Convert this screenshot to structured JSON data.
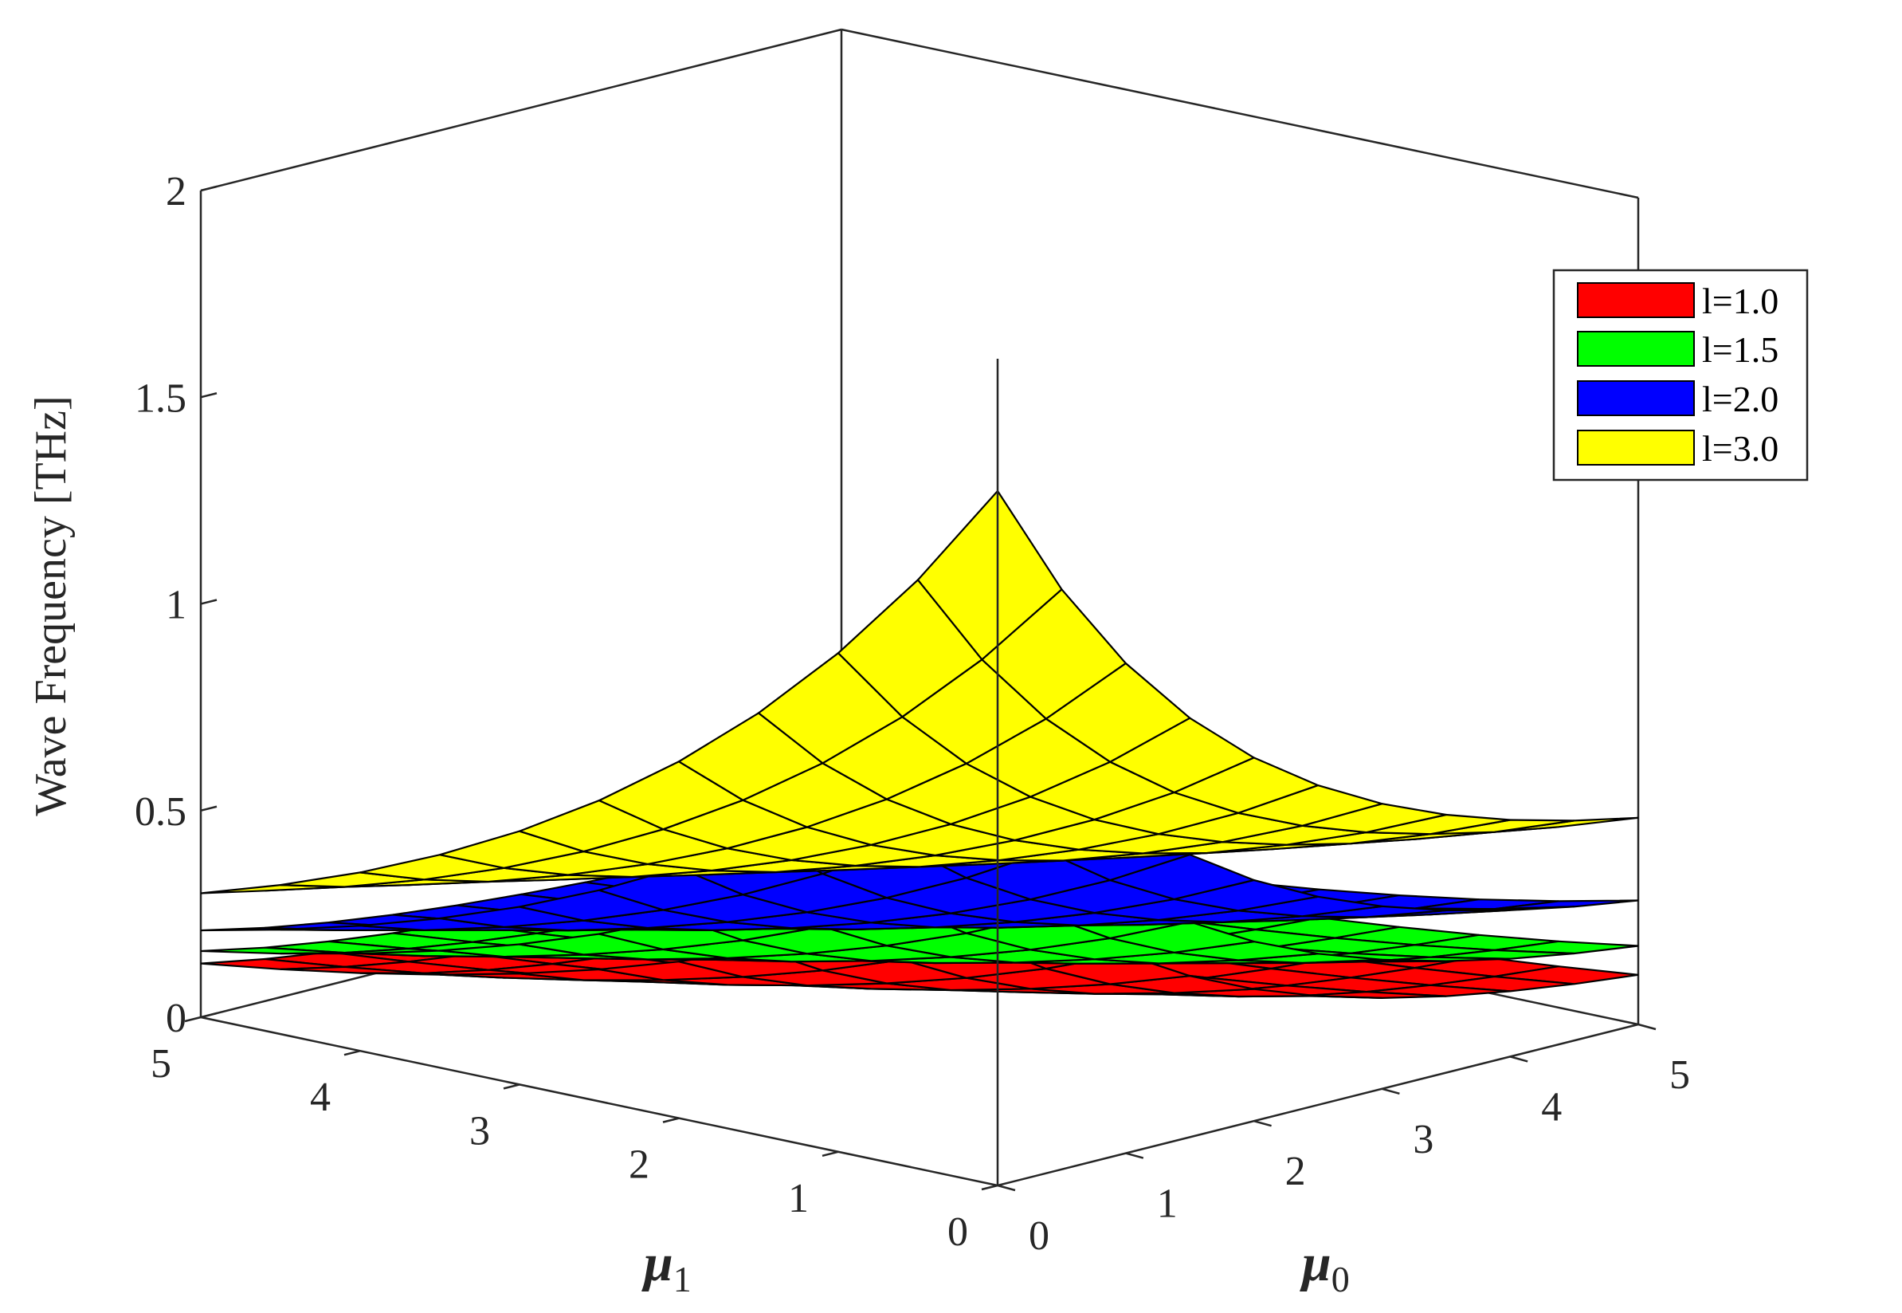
{
  "chart_data": {
    "type": "surface",
    "zlabel": "Wave Frequency [THz]",
    "xlabel": "μ0",
    "ylabel": "μ1",
    "xlabel_symbol": "μ",
    "xlabel_sub": "0",
    "ylabel_symbol": "μ",
    "ylabel_sub": "1",
    "xlim": [
      0,
      5
    ],
    "ylim": [
      0,
      5
    ],
    "zlim": [
      0,
      2
    ],
    "x_ticks": [
      "0",
      "1",
      "2",
      "3",
      "4",
      "5"
    ],
    "y_ticks": [
      "0",
      "1",
      "2",
      "3",
      "4",
      "5"
    ],
    "z_ticks": [
      "0",
      "0.5",
      "1",
      "1.5",
      "2"
    ],
    "legend_position": "top-right",
    "series": [
      {
        "name": "l=1.0",
        "color": "#ff0000",
        "z_corners": {
          "mu0_0_mu1_0": 0.74,
          "mu0_5_mu1_0": 0.12,
          "mu0_0_mu1_5": 0.13,
          "mu0_5_mu1_5": 0.01
        }
      },
      {
        "name": "l=1.5",
        "color": "#00ff00",
        "z_corners": {
          "mu0_0_mu1_0": 0.95,
          "mu0_5_mu1_0": 0.19,
          "mu0_0_mu1_5": 0.16,
          "mu0_5_mu1_5": 0.03
        }
      },
      {
        "name": "l=2.0",
        "color": "#0000ff",
        "z_corners": {
          "mu0_0_mu1_0": 1.18,
          "mu0_5_mu1_0": 0.3,
          "mu0_0_mu1_5": 0.21,
          "mu0_5_mu1_5": 0.07
        }
      },
      {
        "name": "l=3.0",
        "color": "#ffff00",
        "z_corners": {
          "mu0_0_mu1_0": 1.68,
          "mu0_5_mu1_0": 0.5,
          "mu0_0_mu1_5": 0.3,
          "mu0_5_mu1_5": 0.16
        }
      }
    ]
  }
}
